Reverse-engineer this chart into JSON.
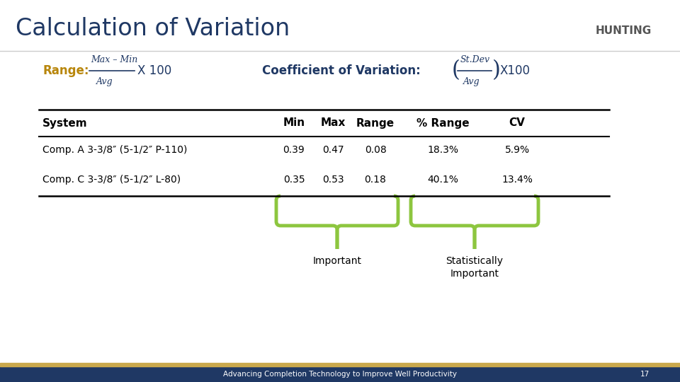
{
  "title": "Calculation of Variation",
  "title_color": "#1F3864",
  "slide_bg": "#FFFFFF",
  "table_headers": [
    "System",
    "Min",
    "Max",
    "Range",
    "% Range",
    "CV"
  ],
  "table_rows": [
    [
      "Comp. A 3-3/8″ (5-1/2″ P-110)",
      "0.39",
      "0.47",
      "0.08",
      "18.3%",
      "5.9%"
    ],
    [
      "Comp. C 3-3/8″ (5-1/2″ L-80)",
      "0.35",
      "0.53",
      "0.18",
      "40.1%",
      "13.4%"
    ]
  ],
  "bracket_color": "#8DC63F",
  "label_important": "Important",
  "label_stat": "Statistically\nImportant",
  "bottom_bar_color": "#1F3864",
  "bottom_bar2_color": "#C9A84C",
  "footer_text": "Advancing Completion Technology to Improve Well Productivity",
  "page_num": "17",
  "formula_color": "#1F3864",
  "title_line_color": "#AAAAAA",
  "range_label_color": "#D4A017",
  "coef_label_color": "#1F3864"
}
